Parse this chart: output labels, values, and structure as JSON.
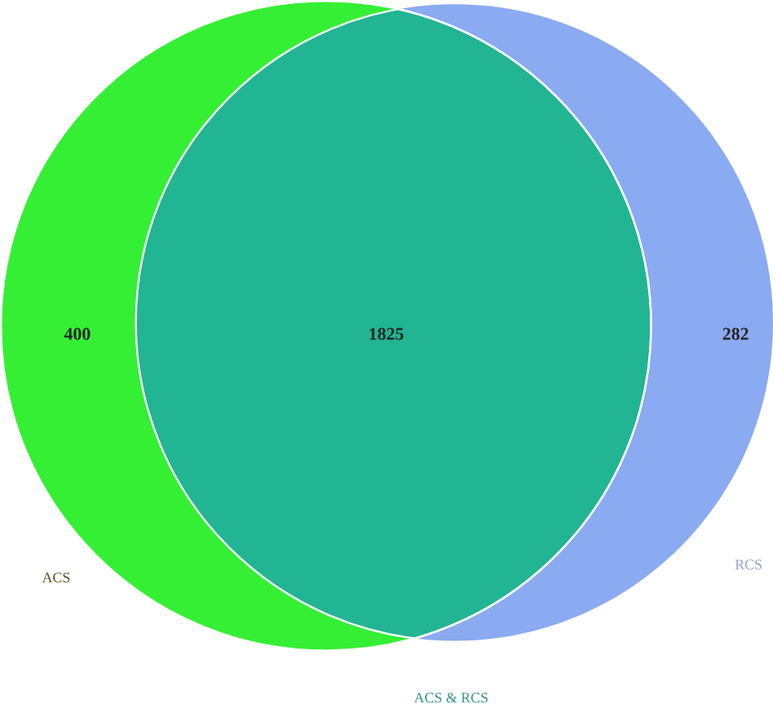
{
  "chart_data": {
    "type": "other",
    "categories": [
      "ACS",
      "RCS",
      "ACS & RCS"
    ],
    "values": [
      400,
      282,
      1825
    ],
    "data_labels": true,
    "colors": [
      "#35ef35",
      "#8aaaf2",
      "#22b593"
    ]
  }
}
